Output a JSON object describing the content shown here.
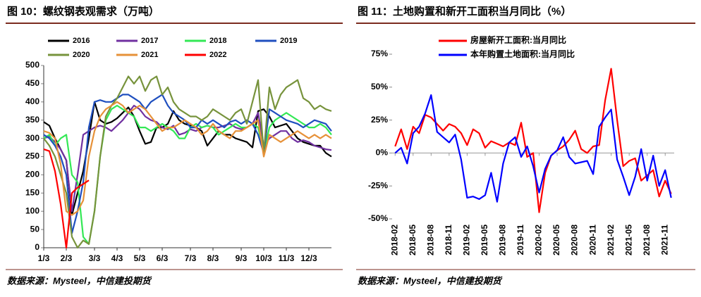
{
  "chart_data": [
    {
      "type": "line",
      "title": "图 10：螺纹钢表观需求（万吨）",
      "source": "数据来源：Mysteel，中信建投期货",
      "categories": [
        "1/3",
        null,
        null,
        null,
        "2/3",
        null,
        null,
        null,
        null,
        "3/3",
        null,
        null,
        null,
        "4/3",
        null,
        null,
        null,
        "5/3",
        null,
        null,
        null,
        "6/3",
        null,
        null,
        null,
        null,
        "7/3",
        null,
        null,
        null,
        "8/3",
        null,
        null,
        null,
        null,
        "9/3",
        null,
        null,
        null,
        "10/3",
        null,
        null,
        null,
        "11/3",
        null,
        null,
        null,
        "12/3",
        null,
        null,
        null,
        null
      ],
      "ylim": [
        0,
        500
      ],
      "yticks": [
        0,
        50,
        100,
        150,
        200,
        250,
        300,
        350,
        400,
        450,
        500
      ],
      "series": [
        {
          "name": "2016",
          "color": "#000000",
          "values": [
            345,
            335,
            300,
            270,
            240,
            90,
            150,
            210,
            300,
            400,
            350,
            340,
            345,
            355,
            370,
            385,
            360,
            320,
            285,
            290,
            330,
            330,
            340,
            375,
            350,
            340,
            335,
            330,
            320,
            280,
            300,
            320,
            310,
            310,
            300,
            295,
            290,
            275,
            375,
            380,
            360,
            330,
            335,
            340,
            320,
            300,
            290,
            285,
            280,
            280,
            260,
            250
          ]
        },
        {
          "name": "2017",
          "color": "#7030a0",
          "values": [
            300,
            305,
            290,
            270,
            240,
            100,
            200,
            310,
            320,
            330,
            335,
            330,
            320,
            335,
            350,
            370,
            390,
            380,
            360,
            350,
            345,
            330,
            325,
            335,
            310,
            315,
            325,
            320,
            330,
            335,
            330,
            330,
            335,
            340,
            330,
            325,
            330,
            340,
            370,
            280,
            300,
            310,
            320,
            320,
            300,
            290,
            295,
            290,
            280,
            275,
            270,
            268
          ]
        },
        {
          "name": "2018",
          "color": "#33e855",
          "values": [
            300,
            310,
            280,
            300,
            310,
            200,
            180,
            30,
            10,
            100,
            250,
            350,
            380,
            390,
            380,
            370,
            360,
            330,
            330,
            320,
            330,
            340,
            330,
            320,
            300,
            300,
            330,
            340,
            330,
            335,
            330,
            310,
            320,
            330,
            340,
            330,
            330,
            340,
            330,
            260,
            330,
            350,
            360,
            370,
            360,
            350,
            340,
            330,
            330,
            340,
            330,
            310
          ]
        },
        {
          "name": "2019",
          "color": "#1f4fbf",
          "values": [
            310,
            300,
            280,
            250,
            200,
            40,
            100,
            180,
            330,
            400,
            405,
            400,
            400,
            410,
            420,
            420,
            410,
            400,
            380,
            400,
            410,
            420,
            390,
            370,
            360,
            350,
            330,
            330,
            350,
            340,
            350,
            340,
            330,
            345,
            350,
            340,
            350,
            340,
            310,
            260,
            380,
            370,
            360,
            350,
            345,
            340,
            330,
            340,
            350,
            345,
            340,
            320
          ]
        },
        {
          "name": "2020",
          "color": "#77933c",
          "values": [
            300,
            280,
            250,
            200,
            150,
            30,
            0,
            20,
            10,
            100,
            250,
            360,
            390,
            410,
            440,
            470,
            450,
            470,
            430,
            460,
            470,
            420,
            440,
            400,
            380,
            370,
            360,
            360,
            350,
            360,
            380,
            370,
            360,
            350,
            370,
            380,
            340,
            400,
            460,
            260,
            440,
            380,
            420,
            440,
            450,
            460,
            410,
            400,
            380,
            390,
            380,
            375
          ]
        },
        {
          "name": "2021",
          "color": "#e69138",
          "values": [
            320,
            315,
            300,
            230,
            100,
            90,
            100,
            130,
            250,
            320,
            360,
            380,
            390,
            400,
            390,
            370,
            380,
            390,
            380,
            360,
            340,
            320,
            330,
            330,
            340,
            350,
            340,
            330,
            310,
            320,
            340,
            320,
            310,
            300,
            320,
            320,
            330,
            340,
            350,
            250,
            310,
            300,
            290,
            300,
            310,
            320,
            310,
            300,
            310,
            300,
            310,
            300
          ]
        },
        {
          "name": "2022",
          "color": "#ff0000",
          "values": [
            270,
            265,
            210,
            120,
            0,
            150,
            165,
            175,
            185,
            null,
            null,
            null,
            null,
            null,
            null,
            null,
            null,
            null,
            null,
            null,
            null,
            null,
            null,
            null,
            null,
            null,
            null,
            null,
            null,
            null,
            null,
            null,
            null,
            null,
            null,
            null,
            null,
            null,
            null,
            null,
            null,
            null,
            null,
            null,
            null,
            null,
            null,
            null,
            null,
            null,
            null,
            null
          ]
        }
      ]
    },
    {
      "type": "line",
      "title": "图 11：土地购置和新开工面积当月同比（%）",
      "source": "数据来源：Mysteel，中信建投期货",
      "categories": [
        "2018-02",
        null,
        null,
        "2018-05",
        null,
        null,
        "2018-08",
        null,
        null,
        "2018-11",
        null,
        null,
        "2019-02",
        null,
        null,
        "2019-05",
        null,
        null,
        "2019-08",
        null,
        null,
        "2019-11",
        null,
        null,
        "2020-02",
        null,
        null,
        "2020-05",
        null,
        null,
        "2020-08",
        null,
        null,
        "2020-11",
        null,
        null,
        "2021-02",
        null,
        null,
        "2021-05",
        null,
        null,
        "2021-08",
        null,
        null,
        "2021-11",
        null
      ],
      "ylim": [
        -50,
        75
      ],
      "yticks": [
        {
          "value": -50,
          "label": "-50%"
        },
        {
          "value": -25,
          "label": "-25%"
        },
        {
          "value": 0,
          "label": "0%"
        },
        {
          "value": 25,
          "label": "25%"
        },
        {
          "value": 50,
          "label": "50%"
        },
        {
          "value": 75,
          "label": "75%"
        }
      ],
      "series": [
        {
          "name": "房屋新开工面积:当月同比",
          "color": "#ff0000",
          "values": [
            5,
            18,
            3,
            20,
            15,
            29,
            27,
            22,
            17,
            22,
            20,
            15,
            6,
            18,
            15,
            4,
            9,
            7,
            5,
            8,
            6,
            23,
            -3,
            0,
            -45,
            -15,
            -2,
            2,
            5,
            10,
            17,
            3,
            0,
            5,
            6,
            40,
            64,
            25,
            -10,
            -6,
            -4,
            -21,
            -17,
            -13,
            -33,
            -21,
            -31
          ]
        },
        {
          "name": "本年购置土地面积:当月同比",
          "color": "#0000ff",
          "values": [
            0,
            4,
            -8,
            15,
            20,
            30,
            44,
            16,
            12,
            8,
            14,
            -5,
            -34,
            -33,
            -35,
            -32,
            -15,
            -37,
            -8,
            8,
            12,
            -3,
            5,
            -10,
            -30,
            -12,
            -2,
            2,
            12,
            -3,
            -8,
            -7,
            -6,
            -16,
            20,
            27,
            33,
            -5,
            -18,
            -32,
            -18,
            3,
            -21,
            -2,
            -25,
            -13,
            -34
          ]
        }
      ]
    }
  ]
}
